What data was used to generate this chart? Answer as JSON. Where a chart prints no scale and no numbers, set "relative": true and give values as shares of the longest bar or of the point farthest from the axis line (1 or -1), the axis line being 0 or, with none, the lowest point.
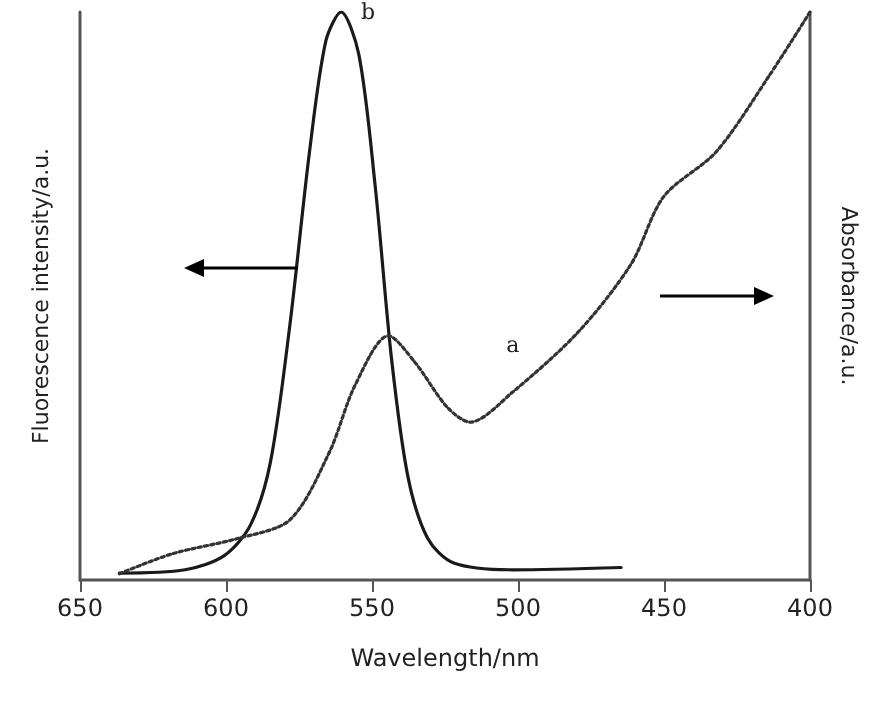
{
  "chart_data": {
    "type": "line",
    "xlabel": "Wavelength/nm",
    "ylabel": "Fluorescence intensity/a.u.",
    "y2label": "Absorbance/a.u.",
    "relative": true,
    "xlim": [
      650,
      400
    ],
    "xticks": [
      650,
      600,
      550,
      500,
      450,
      400
    ],
    "marker": "none",
    "grid": false,
    "legend": false,
    "series": [
      {
        "name": "b",
        "color": "#1a1a1a",
        "line_style": "solid",
        "x": [
          636.5,
          614,
          600.6,
          591.6,
          584.8,
          578.1,
          571.4,
          565.8,
          560.6,
          554.5,
          548.9,
          543.3,
          537.7,
          530.9,
          522,
          501.8,
          464.7
        ],
        "values": [
          0.012,
          0.018,
          0.043,
          0.097,
          0.207,
          0.45,
          0.754,
          0.949,
          1.0,
          0.925,
          0.693,
          0.389,
          0.182,
          0.073,
          0.03,
          0.018,
          0.022
        ]
      },
      {
        "name": "a",
        "color": "#333333",
        "line_style": "dotted",
        "axis": "y2",
        "x": [
          636.5,
          618.5,
          596.1,
          578.1,
          564.6,
          555.7,
          544.4,
          535.4,
          524.2,
          516.4,
          501.8,
          479.3,
          461.3,
          450.1,
          432.1,
          414.2,
          400
        ],
        "values": [
          0.011,
          0.046,
          0.073,
          0.106,
          0.225,
          0.344,
          0.43,
          0.384,
          0.304,
          0.278,
          0.331,
          0.437,
          0.556,
          0.675,
          0.754,
          0.886,
          1.0
        ]
      }
    ]
  }
}
